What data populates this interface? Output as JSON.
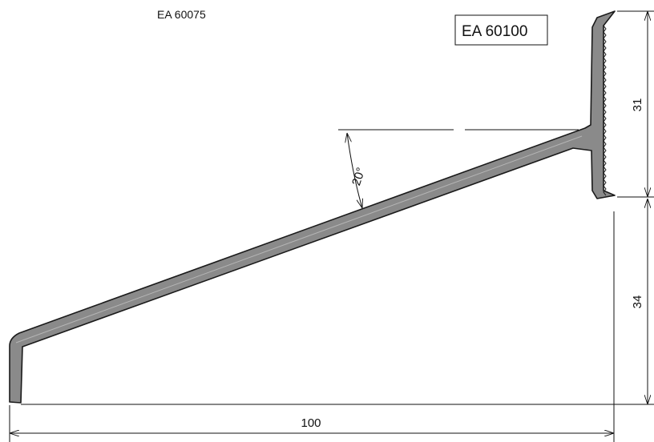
{
  "labels": {
    "old_code": "EA 60075",
    "new_code": "EA 60100"
  },
  "dimensions": {
    "angle": "20°",
    "upper_height": "31",
    "lower_height": "34",
    "width": "100"
  },
  "colors": {
    "profile_fill": "#8a8a8a",
    "outline": "#1a1a1a",
    "line": "#111111"
  }
}
